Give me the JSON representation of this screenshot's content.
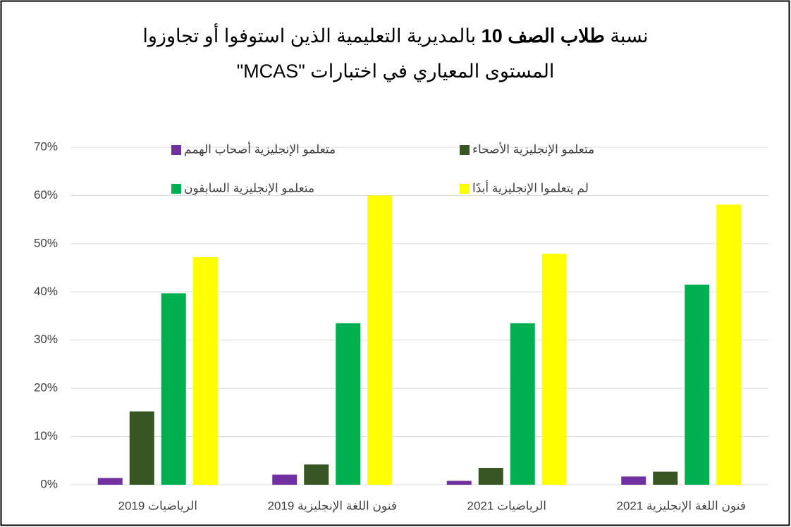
{
  "chart_data": {
    "type": "bar",
    "title": [
      "نسبة",
      "طلاب الصف 10",
      "بالمديرية التعليمية الذين استوفوا أو تجاوزوا",
      "المستوى المعياري في اختبارات \"MCAS\""
    ],
    "categories": [
      "الرياضيات 2019",
      "فنون اللغة الإنجليزية 2019",
      "الرياضيات 2021",
      "فنون اللغة الإنجليزية 2021"
    ],
    "series": [
      {
        "name": "متعلمو الإنجليزية أصحاب الهمم",
        "color": "#7030a0",
        "values": [
          1.4,
          2.1,
          0.8,
          1.7
        ]
      },
      {
        "name": "متعلمو الإنجليزية الأصحاء",
        "color": "#375623",
        "values": [
          15.2,
          4.2,
          3.5,
          2.7
        ]
      },
      {
        "name": "متعلمو الإنجليزية السابقون",
        "color": "#00b050",
        "values": [
          39.7,
          33.5,
          33.5,
          41.5
        ]
      },
      {
        "name": "لم يتعلموا الإنجليزية أبدًا",
        "color": "#ffff00",
        "values": [
          47.2,
          60,
          47.9,
          58.1
        ]
      }
    ],
    "ylim": [
      0,
      70
    ],
    "yticks": [
      {
        "value": 0,
        "label": "0%"
      },
      {
        "value": 10,
        "label": "10%"
      },
      {
        "value": 20,
        "label": "20%"
      },
      {
        "value": 30,
        "label": "30%"
      },
      {
        "value": 40,
        "label": "40%"
      },
      {
        "value": 50,
        "label": "50%"
      },
      {
        "value": 60,
        "label": "60%"
      },
      {
        "value": 70,
        "label": "70%"
      }
    ],
    "grid": true,
    "legend": "top"
  }
}
